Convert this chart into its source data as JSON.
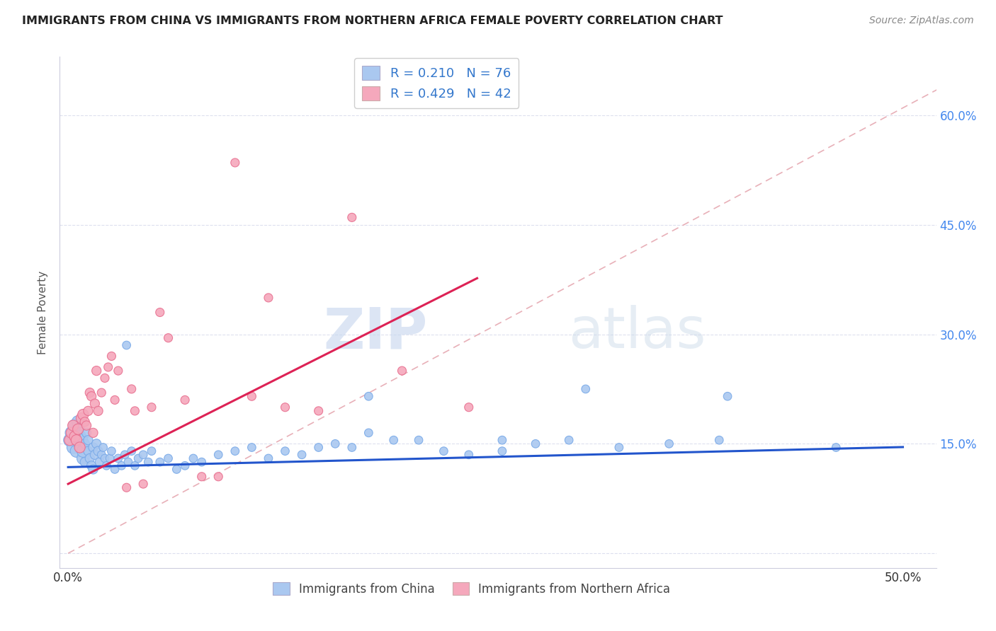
{
  "title": "IMMIGRANTS FROM CHINA VS IMMIGRANTS FROM NORTHERN AFRICA FEMALE POVERTY CORRELATION CHART",
  "source": "Source: ZipAtlas.com",
  "ylabel": "Female Poverty",
  "yticks": [
    0.0,
    0.15,
    0.3,
    0.45,
    0.6
  ],
  "ytick_labels": [
    "",
    "15.0%",
    "30.0%",
    "45.0%",
    "60.0%"
  ],
  "xticks": [
    0.0,
    0.1,
    0.2,
    0.3,
    0.4,
    0.5
  ],
  "xtick_labels": [
    "0.0%",
    "",
    "",
    "",
    "",
    "50.0%"
  ],
  "xlim": [
    -0.005,
    0.52
  ],
  "ylim": [
    -0.02,
    0.68
  ],
  "china_color": "#aac8f0",
  "china_edge": "#7aaae8",
  "africa_color": "#f5a8bc",
  "africa_edge": "#e87090",
  "trend_china_color": "#2255cc",
  "trend_africa_color": "#dd2255",
  "diag_color": "#e8b0b8",
  "R_china": 0.21,
  "N_china": 76,
  "R_africa": 0.429,
  "N_africa": 42,
  "legend_label_china": "Immigrants from China",
  "legend_label_africa": "Immigrants from Northern Africa",
  "watermark_zip": "ZIP",
  "watermark_atlas": "atlas",
  "china_x": [
    0.001,
    0.002,
    0.003,
    0.004,
    0.005,
    0.005,
    0.006,
    0.006,
    0.007,
    0.007,
    0.008,
    0.008,
    0.009,
    0.009,
    0.01,
    0.01,
    0.011,
    0.012,
    0.012,
    0.013,
    0.014,
    0.015,
    0.015,
    0.016,
    0.017,
    0.018,
    0.019,
    0.02,
    0.021,
    0.022,
    0.023,
    0.025,
    0.026,
    0.028,
    0.03,
    0.032,
    0.034,
    0.036,
    0.038,
    0.04,
    0.042,
    0.045,
    0.048,
    0.05,
    0.055,
    0.06,
    0.065,
    0.07,
    0.075,
    0.08,
    0.09,
    0.1,
    0.11,
    0.12,
    0.13,
    0.14,
    0.15,
    0.16,
    0.17,
    0.18,
    0.195,
    0.21,
    0.225,
    0.24,
    0.26,
    0.28,
    0.3,
    0.33,
    0.36,
    0.39,
    0.18,
    0.26,
    0.31,
    0.395,
    0.46,
    0.035
  ],
  "china_y": [
    0.155,
    0.165,
    0.145,
    0.175,
    0.16,
    0.14,
    0.17,
    0.18,
    0.15,
    0.16,
    0.145,
    0.155,
    0.13,
    0.14,
    0.15,
    0.125,
    0.165,
    0.14,
    0.155,
    0.13,
    0.12,
    0.115,
    0.145,
    0.135,
    0.15,
    0.14,
    0.125,
    0.135,
    0.145,
    0.13,
    0.12,
    0.13,
    0.14,
    0.115,
    0.13,
    0.12,
    0.135,
    0.125,
    0.14,
    0.12,
    0.13,
    0.135,
    0.125,
    0.14,
    0.125,
    0.13,
    0.115,
    0.12,
    0.13,
    0.125,
    0.135,
    0.14,
    0.145,
    0.13,
    0.14,
    0.135,
    0.145,
    0.15,
    0.145,
    0.165,
    0.155,
    0.155,
    0.14,
    0.135,
    0.14,
    0.15,
    0.155,
    0.145,
    0.15,
    0.155,
    0.215,
    0.155,
    0.225,
    0.215,
    0.145,
    0.285
  ],
  "africa_x": [
    0.001,
    0.002,
    0.003,
    0.004,
    0.005,
    0.006,
    0.007,
    0.008,
    0.009,
    0.01,
    0.011,
    0.012,
    0.013,
    0.014,
    0.015,
    0.016,
    0.017,
    0.018,
    0.02,
    0.022,
    0.024,
    0.026,
    0.028,
    0.03,
    0.035,
    0.038,
    0.04,
    0.045,
    0.05,
    0.055,
    0.06,
    0.07,
    0.08,
    0.09,
    0.1,
    0.11,
    0.12,
    0.13,
    0.15,
    0.17,
    0.2,
    0.24
  ],
  "africa_y": [
    0.155,
    0.165,
    0.175,
    0.16,
    0.155,
    0.17,
    0.145,
    0.185,
    0.19,
    0.18,
    0.175,
    0.195,
    0.22,
    0.215,
    0.165,
    0.205,
    0.25,
    0.195,
    0.22,
    0.24,
    0.255,
    0.27,
    0.21,
    0.25,
    0.09,
    0.225,
    0.195,
    0.095,
    0.2,
    0.33,
    0.295,
    0.21,
    0.105,
    0.105,
    0.535,
    0.215,
    0.35,
    0.2,
    0.195,
    0.46,
    0.25,
    0.2
  ],
  "trend_china_intercept": 0.118,
  "trend_china_slope": 0.055,
  "trend_africa_intercept": 0.095,
  "trend_africa_slope": 1.15
}
